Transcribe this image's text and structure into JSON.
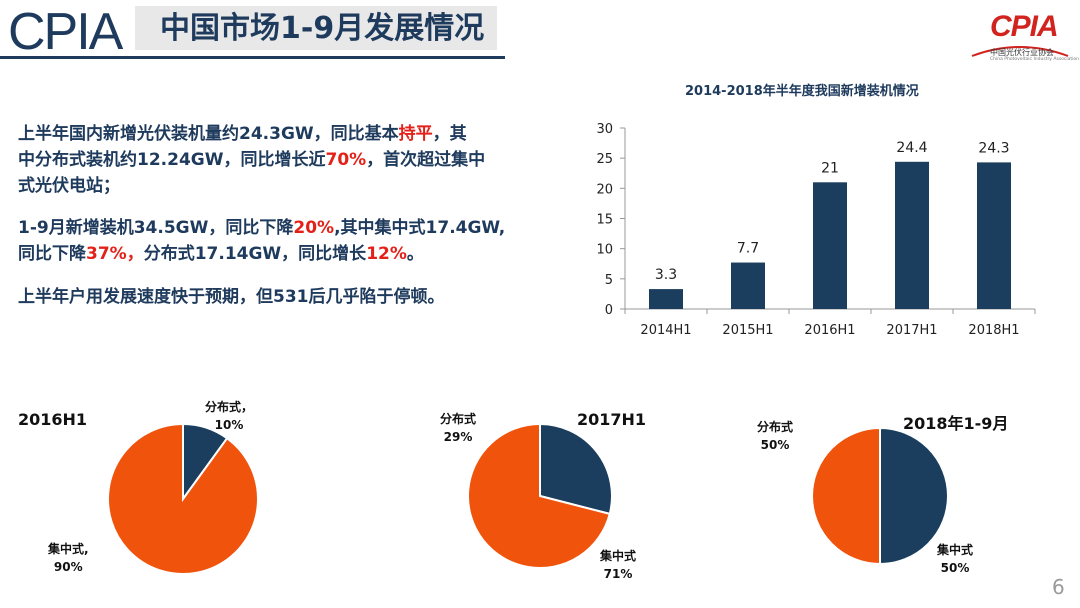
{
  "header": {
    "logo_left": "CPIA",
    "title": "中国市场1-9月发展情况",
    "logo_right": "CPIA",
    "logo_right_sub": "中国光伏行业协会",
    "logo_right_sub_en": "China Photovoltaic Industry Association"
  },
  "paragraphs": [
    {
      "line1": "上半年国内新增光伏装机量约24.3GW，同比基本",
      "line1_red": "持平",
      "line1_tail": "，其",
      "line2": "中分布式装机约12.24GW，同比增长近",
      "line2_red": "70%",
      "line2_tail": "，首次超过集中",
      "line3": "式光伏电站；"
    },
    {
      "line1": "1-9月新增装机34.5GW，同比下降",
      "line1_red": "20%",
      "line1_tail": ",其中集中式17.4GW,",
      "line2": "同比下降",
      "line2_red": "37%，",
      "line2_mid": "分布式17.14GW，同比增长",
      "line2_red2": "12%",
      "line2_tail": "。"
    },
    {
      "line1": "上半年户用发展速度快于预期，但531后几乎陷于停顿。"
    }
  ],
  "colors": {
    "navy": "#1e3a5c",
    "orange": "#f0530c",
    "red": "#e32119",
    "pie_navy": "#1b3e5e"
  },
  "chart_data": [
    {
      "type": "bar",
      "title": "2014-2018年半年度我国新增装机情况",
      "categories": [
        "2014H1",
        "2015H1",
        "2016H1",
        "2017H1",
        "2018H1"
      ],
      "values": [
        3.3,
        7.7,
        21,
        24.4,
        24.3
      ],
      "value_labels": [
        "3.3",
        "7.7",
        "21",
        "24.4",
        "24.3"
      ],
      "ylim": [
        0,
        30
      ],
      "yticks": [
        "0",
        "5",
        "10",
        "15",
        "20",
        "25",
        "30"
      ],
      "ytick_values": [
        0,
        5,
        10,
        15,
        20,
        25,
        30
      ],
      "xlabel": "",
      "ylabel": "",
      "grid": false
    },
    {
      "type": "pie",
      "title": "2016H1",
      "slices": [
        {
          "label": "分布式，",
          "pct_label": "10%",
          "value": 10,
          "color": "#1b3e5e"
        },
        {
          "label": "集中式,",
          "pct_label": "90%",
          "value": 90,
          "color": "#f0530c"
        }
      ]
    },
    {
      "type": "pie",
      "title": "2017H1",
      "slices": [
        {
          "label": "分布式",
          "pct_label": "29%",
          "value": 29,
          "color": "#1b3e5e"
        },
        {
          "label": "集中式",
          "pct_label": "71%",
          "value": 71,
          "color": "#f0530c"
        }
      ]
    },
    {
      "type": "pie",
      "title": "2018年1-9月",
      "slices": [
        {
          "label": "分布式",
          "pct_label": "50%",
          "value": 50,
          "color": "#1b3e5e"
        },
        {
          "label": "集中式",
          "pct_label": "50%",
          "value": 50,
          "color": "#f0530c"
        }
      ]
    }
  ],
  "page_number": "6"
}
